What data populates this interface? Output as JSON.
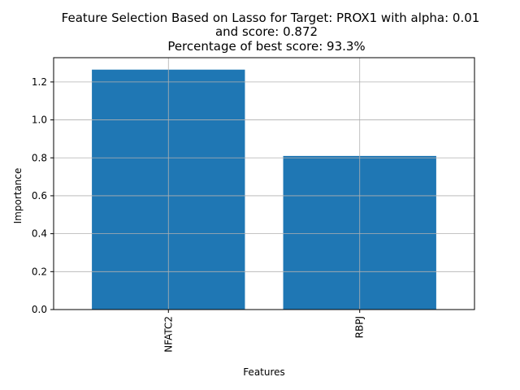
{
  "chart_data": {
    "type": "bar",
    "title_lines": [
      "Feature Selection Based on Lasso for Target: PROX1 with alpha: 0.01",
      "and score: 0.872",
      "Percentage of best score: 93.3%"
    ],
    "categories": [
      "NFATC2",
      "RBPJ"
    ],
    "values": [
      1.265,
      0.81
    ],
    "xlabel": "Features",
    "ylabel": "Importance",
    "ylim": [
      0,
      1.328
    ],
    "yticks": [
      0.0,
      0.2,
      0.4,
      0.6,
      0.8,
      1.0,
      1.2
    ],
    "ytick_labels": [
      "0.0",
      "0.2",
      "0.4",
      "0.6",
      "0.8",
      "1.0",
      "1.2"
    ],
    "grid": true,
    "bar_color": "#1f77b4",
    "grid_color": "#b0b0b0"
  }
}
